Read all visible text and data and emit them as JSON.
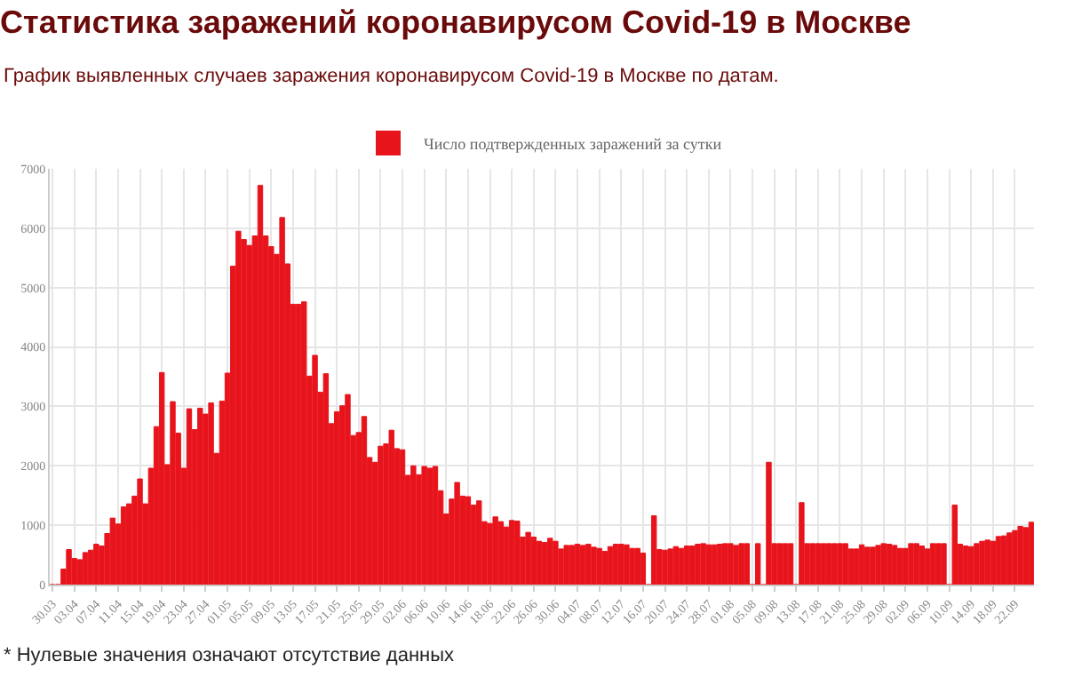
{
  "chart_data": {
    "type": "bar",
    "title": "Статистика заражений коронавирусом Covid-19 в Москве",
    "subtitle": "График выявленных случаев заражения коронавирусом Covid-19 в Москве по датам.",
    "annotations": [
      "* Нулевые значения означают отсутствие данных"
    ],
    "categories": [
      "30.03",
      null,
      null,
      null,
      "03.04",
      null,
      null,
      null,
      "07.04",
      null,
      null,
      null,
      "11.04",
      null,
      null,
      null,
      "15.04",
      null,
      null,
      null,
      "19.04",
      null,
      null,
      null,
      "23.04",
      null,
      null,
      null,
      "27.04",
      null,
      null,
      null,
      "01.05",
      null,
      null,
      null,
      "05.05",
      null,
      null,
      null,
      "09.05",
      null,
      null,
      null,
      "13.05",
      null,
      null,
      null,
      "17.05",
      null,
      null,
      null,
      "21.05",
      null,
      null,
      null,
      "25.05",
      null,
      null,
      null,
      "29.05",
      null,
      null,
      null,
      "02.06",
      null,
      null,
      null,
      "06.06",
      null,
      null,
      null,
      "10.06",
      null,
      null,
      null,
      "14.06",
      null,
      null,
      null,
      "18.06",
      null,
      null,
      null,
      "22.06",
      null,
      null,
      null,
      "26.06",
      null,
      null,
      null,
      "30.06",
      null,
      null,
      null,
      "04.07",
      null,
      null,
      null,
      "08.07",
      null,
      null,
      null,
      "12.07",
      null,
      null,
      null,
      "16.07",
      null,
      null,
      null,
      "20.07",
      null,
      null,
      null,
      "24.07",
      null,
      null,
      null,
      "28.07",
      null,
      null,
      null,
      "01.08",
      null,
      null,
      null,
      "05.08",
      null,
      null,
      null,
      "09.08",
      null,
      null,
      null,
      "13.08",
      null,
      null,
      null,
      "17.08",
      null,
      null,
      null,
      "21.08",
      null,
      null,
      null,
      "25.08",
      null,
      null,
      null,
      "29.08",
      null,
      null,
      null,
      "02.09",
      null,
      null,
      null,
      "06.09",
      null,
      null,
      null,
      "10.09",
      null,
      null,
      null,
      "14.09",
      null,
      null,
      null,
      "18.09",
      null,
      null,
      null,
      "22.09",
      null,
      null,
      null
    ],
    "series": [
      {
        "name": "Число подтвержденных заражений за сутки",
        "color": "#e8141c",
        "values": [
          0,
          0,
          260,
          590,
          440,
          420,
          540,
          580,
          680,
          650,
          860,
          1120,
          1020,
          1310,
          1360,
          1490,
          1780,
          1360,
          1960,
          2660,
          3570,
          2020,
          3080,
          2550,
          1960,
          2960,
          2610,
          2970,
          2870,
          3060,
          2210,
          3090,
          3560,
          5360,
          5950,
          5810,
          5710,
          5870,
          6720,
          5870,
          5690,
          5560,
          6180,
          5400,
          4720,
          4720,
          4760,
          3510,
          3860,
          3240,
          3550,
          2710,
          2910,
          3010,
          3200,
          2510,
          2560,
          2830,
          2140,
          2060,
          2330,
          2370,
          2600,
          2290,
          2270,
          1840,
          2000,
          1850,
          1990,
          1960,
          1990,
          1580,
          1190,
          1440,
          1720,
          1490,
          1480,
          1340,
          1410,
          1060,
          1030,
          1140,
          1060,
          970,
          1080,
          1070,
          800,
          880,
          800,
          730,
          710,
          780,
          730,
          600,
          660,
          660,
          680,
          660,
          680,
          630,
          610,
          560,
          640,
          680,
          680,
          670,
          610,
          610,
          530,
          0,
          1160,
          590,
          580,
          600,
          640,
          610,
          650,
          650,
          680,
          690,
          670,
          670,
          680,
          690,
          690,
          660,
          690,
          690,
          0,
          690,
          0,
          2060,
          690,
          690,
          690,
          690,
          0,
          1380,
          690,
          690,
          690,
          690,
          690,
          690,
          690,
          690,
          600,
          600,
          670,
          630,
          630,
          660,
          690,
          680,
          660,
          610,
          610,
          690,
          690,
          650,
          600,
          690,
          690,
          690,
          0,
          1340,
          680,
          650,
          640,
          690,
          730,
          750,
          730,
          810,
          820,
          870,
          910,
          980,
          960,
          1050
        ]
      }
    ],
    "ylim": [
      0,
      7000
    ],
    "yticks": [
      0,
      1000,
      2000,
      3000,
      4000,
      5000,
      6000,
      7000
    ],
    "grid": true,
    "legend": "top"
  }
}
